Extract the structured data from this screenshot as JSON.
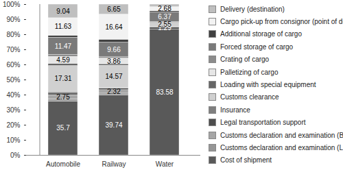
{
  "chart_data": {
    "type": "bar",
    "stacked": true,
    "data_labels": true,
    "grid": false,
    "legend": "right",
    "categories": [
      "Automobile",
      "Railway",
      "Water"
    ],
    "ylim": [
      0,
      100
    ],
    "yticks": [
      {
        "value": 0,
        "label": "0%"
      },
      {
        "value": 10,
        "label": "10%"
      },
      {
        "value": 20,
        "label": "20%"
      },
      {
        "value": 30,
        "label": "30%"
      },
      {
        "value": 40,
        "label": "40%"
      },
      {
        "value": 50,
        "label": "50%"
      },
      {
        "value": 60,
        "label": "60%"
      },
      {
        "value": 70,
        "label": "70%"
      },
      {
        "value": 80,
        "label": "80%"
      },
      {
        "value": 90,
        "label": "90%"
      },
      {
        "value": 100,
        "label": "100%"
      }
    ],
    "series": [
      {
        "name": "Cost of shipment",
        "color": "#595959",
        "values": [
          35.7,
          39.74,
          83.58
        ],
        "value_labels": [
          "35.7",
          "39.74",
          "83.58"
        ]
      },
      {
        "name": "Customs declaration and examination (Lithuania)",
        "color": "#969696",
        "values": [
          1.5,
          1.2,
          0
        ],
        "value_labels": [
          null,
          null,
          null
        ]
      },
      {
        "name": "Customs declaration and examination (Belarus)",
        "color": "#a6a6a6",
        "values": [
          2.75,
          2.32,
          0
        ],
        "value_labels": [
          "2.75",
          "2.32",
          null
        ]
      },
      {
        "name": "Legal transportation support",
        "color": "#4d4d4d",
        "values": [
          1.2,
          1.0,
          1.29
        ],
        "value_labels": [
          null,
          null,
          "1.29"
        ]
      },
      {
        "name": "Insurance",
        "color": "#7f7f7f",
        "values": [
          0.8,
          0.6,
          0.5
        ],
        "value_labels": [
          null,
          null,
          null
        ]
      },
      {
        "name": "Customs clearance",
        "color": "#d0d0d0",
        "values": [
          17.31,
          14.57,
          2.55
        ],
        "value_labels": [
          "17.31",
          "14.57",
          "2.55"
        ]
      },
      {
        "name": "Loading with special equipment",
        "color": "#666666",
        "values": [
          1.5,
          1.0,
          0.5
        ],
        "value_labels": [
          null,
          null,
          null
        ]
      },
      {
        "name": "Palletizing of cargo",
        "color": "#e6e6e6",
        "values": [
          4.59,
          3.86,
          0
        ],
        "value_labels": [
          "4.59",
          "3.86",
          null
        ]
      },
      {
        "name": "Crating of cargo",
        "color": "#8c8c8c",
        "values": [
          1.2,
          0.8,
          0
        ],
        "value_labels": [
          null,
          null,
          null
        ]
      },
      {
        "name": "Forced storage of cargo",
        "color": "#7a7a7a",
        "values": [
          11.47,
          9.66,
          6.37
        ],
        "value_labels": [
          "11.47",
          "9.66",
          "6.37"
        ]
      },
      {
        "name": "Additional storage of cargo",
        "color": "#404040",
        "values": [
          1.31,
          1.96,
          0.8
        ],
        "value_labels": [
          null,
          null,
          null
        ]
      },
      {
        "name": "Cargo pick-up from consignor (point of departure)",
        "color": "#f2f2f2",
        "values": [
          11.63,
          16.64,
          2.68
        ],
        "value_labels": [
          "11.63",
          "16.64",
          "2.68"
        ]
      },
      {
        "name": "Delivery (destination)",
        "color": "#bfbfbf",
        "values": [
          9.04,
          6.65,
          1.73
        ],
        "value_labels": [
          "9.04",
          "6.65",
          null
        ]
      }
    ]
  }
}
